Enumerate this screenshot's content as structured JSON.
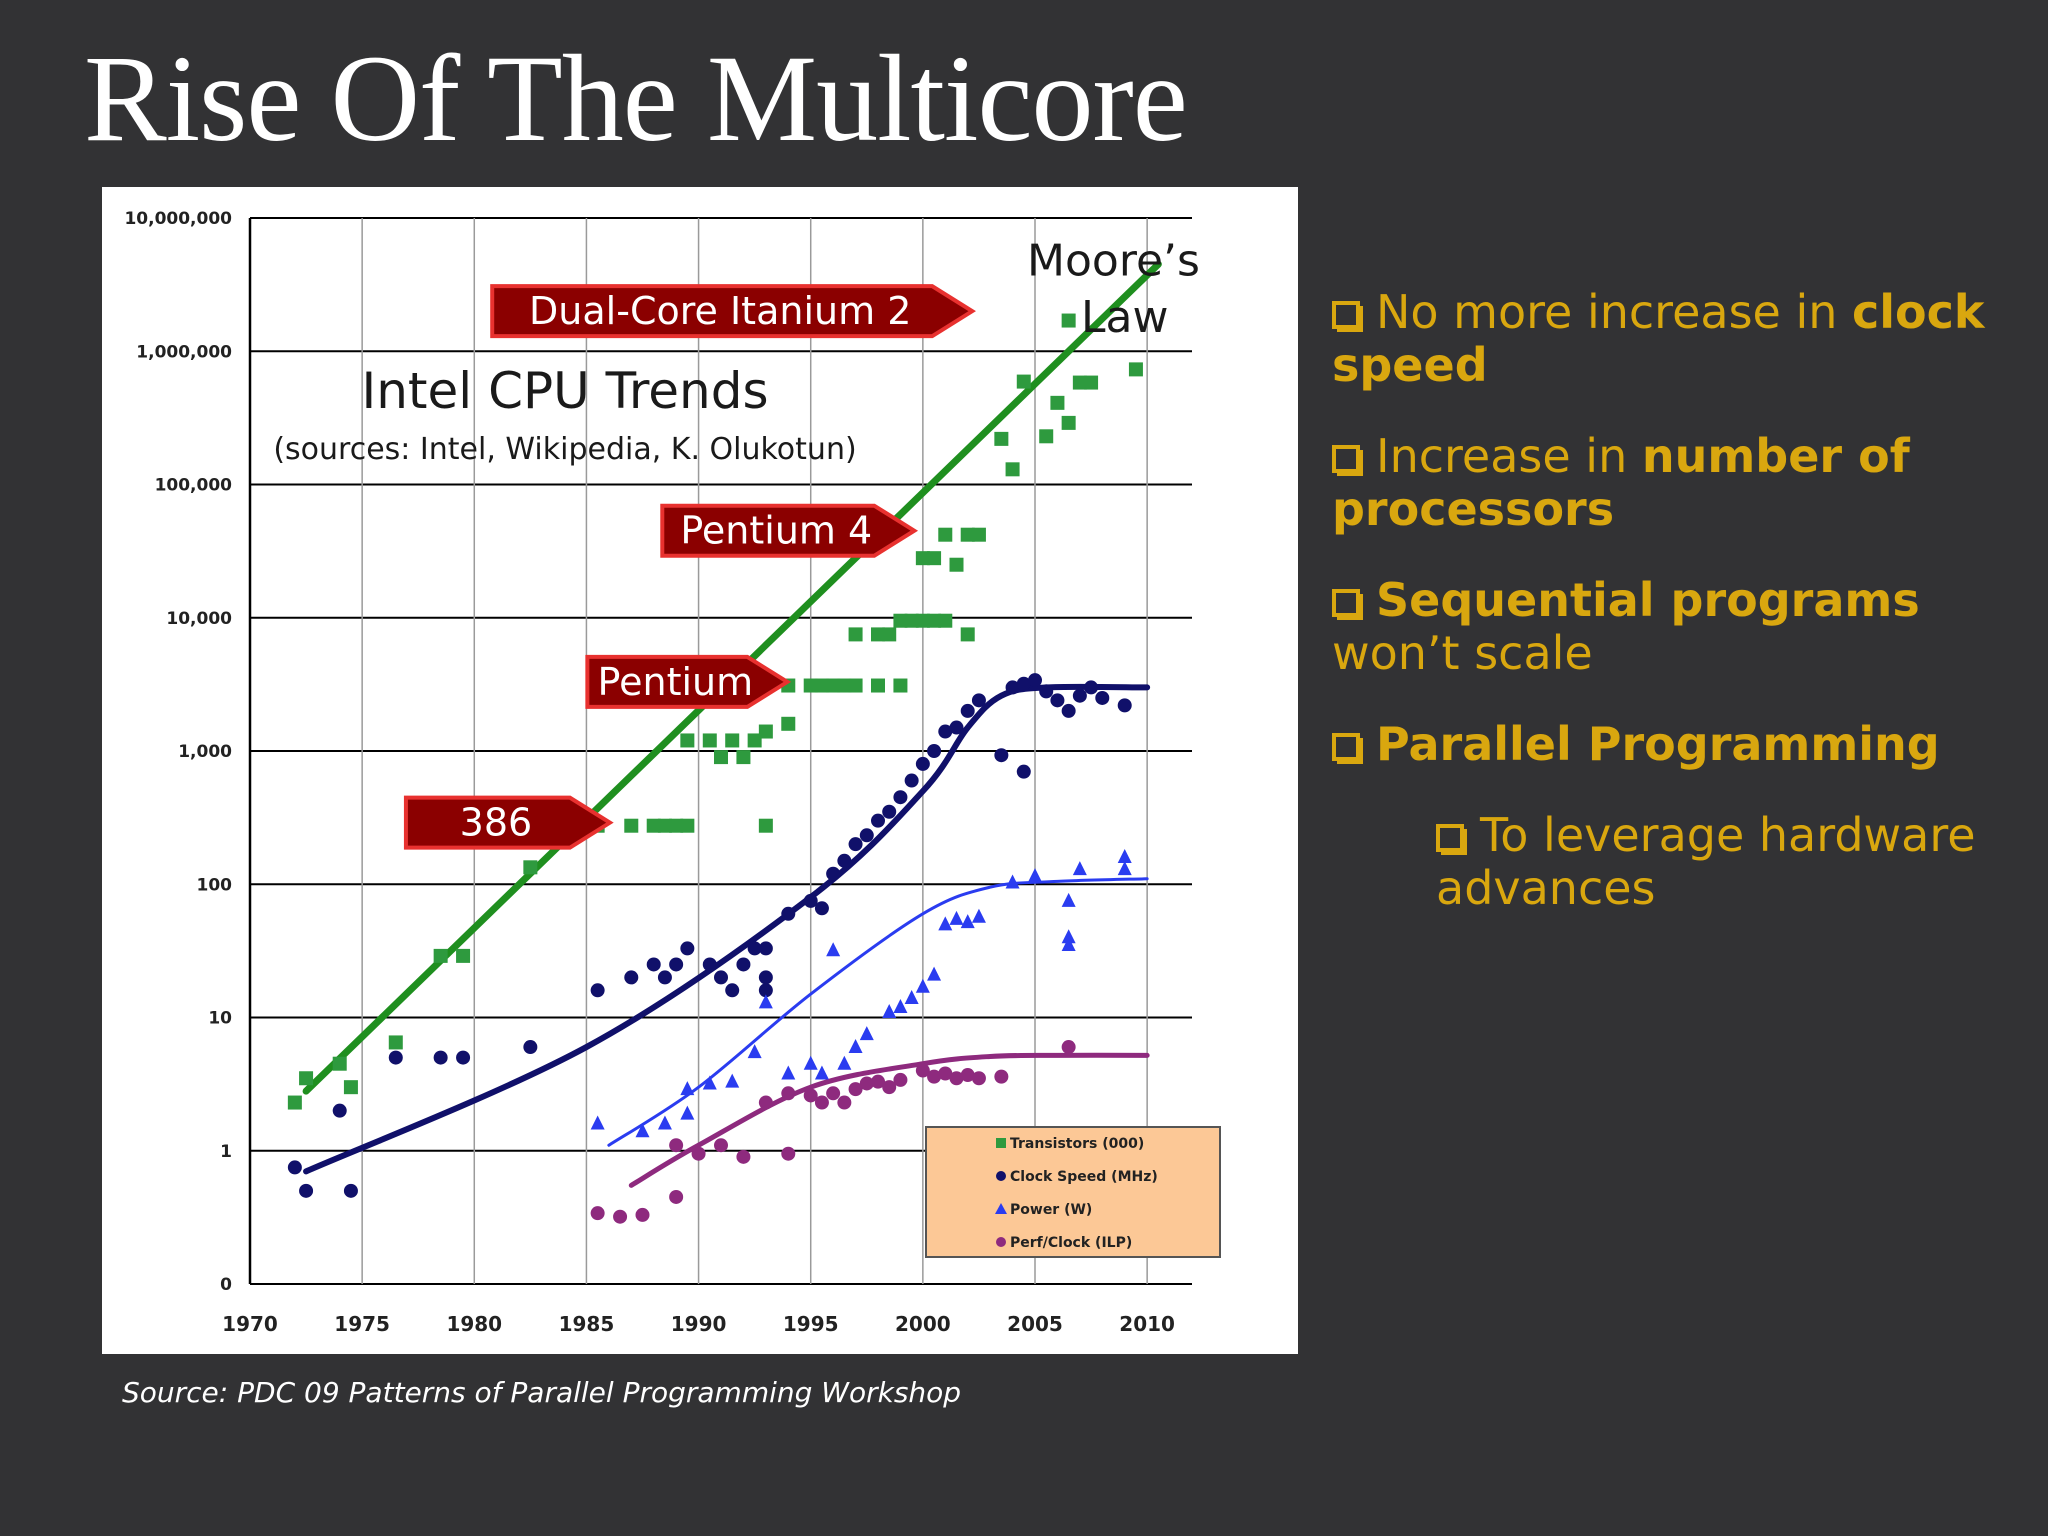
{
  "slide": {
    "title": "Rise Of The Multicore",
    "source": "Source: PDC 09 Patterns of Parallel Programming Workshop"
  },
  "colors": {
    "background": "#323234",
    "accent": "#d9a70f",
    "transistors": "#2e9a3e",
    "moore_line": "#1f8f1f",
    "clock": "#10106a",
    "power": "#2a3cf0",
    "perf": "#8e2a7e",
    "callout": "#8b0000",
    "legend_bg": "#fcc896"
  },
  "bullets": [
    {
      "parts": [
        {
          "text": "No more increase in ",
          "bold": false
        },
        {
          "text": "clock speed",
          "bold": true
        }
      ],
      "level": 1
    },
    {
      "parts": [
        {
          "text": "Increase in ",
          "bold": false
        },
        {
          "text": "number of processors",
          "bold": true
        }
      ],
      "level": 1
    },
    {
      "parts": [
        {
          "text": "Sequential programs",
          "bold": true
        },
        {
          "text": " won’t scale",
          "bold": false
        }
      ],
      "level": 1
    },
    {
      "parts": [
        {
          "text": "Parallel Programming",
          "bold": true
        }
      ],
      "level": 1
    },
    {
      "parts": [
        {
          "text": "To leverage hardware advances",
          "bold": false
        }
      ],
      "level": 2
    }
  ],
  "chart_data": {
    "type": "scatter",
    "title": "Intel CPU Trends",
    "subtitle": "(sources: Intel, Wikipedia, K. Olukotun)",
    "xlim": [
      1970,
      2012
    ],
    "y_scale": "log",
    "x_ticks": [
      1970,
      1975,
      1980,
      1985,
      1990,
      1995,
      2000,
      2005,
      2010
    ],
    "y_ticks": [
      {
        "value": 0.1,
        "label": "0"
      },
      {
        "value": 1,
        "label": "1"
      },
      {
        "value": 10,
        "label": "10"
      },
      {
        "value": 100,
        "label": "100"
      },
      {
        "value": 1000,
        "label": "1,000"
      },
      {
        "value": 10000,
        "label": "10,000"
      },
      {
        "value": 100000,
        "label": "100,000"
      },
      {
        "value": 1000000,
        "label": "1,000,000"
      },
      {
        "value": 10000000,
        "label": "10,000,000"
      }
    ],
    "grid": true,
    "legend_position": "bottom-right",
    "series": [
      {
        "name": "Transistors (000)",
        "marker": "square",
        "color_key": "transistors",
        "points": [
          [
            1972,
            2.3
          ],
          [
            1972.5,
            3.5
          ],
          [
            1974,
            4.5
          ],
          [
            1974.5,
            3
          ],
          [
            1976.5,
            6.5
          ],
          [
            1978.5,
            29
          ],
          [
            1979.5,
            29
          ],
          [
            1982.5,
            134
          ],
          [
            1985.5,
            275
          ],
          [
            1987,
            275
          ],
          [
            1988,
            275
          ],
          [
            1988.5,
            275
          ],
          [
            1989,
            275
          ],
          [
            1989.5,
            275
          ],
          [
            1993,
            275
          ],
          [
            1989.5,
            1200
          ],
          [
            1990.5,
            1200
          ],
          [
            1991,
            900
          ],
          [
            1991.5,
            1200
          ],
          [
            1992,
            900
          ],
          [
            1992.5,
            1200
          ],
          [
            1993,
            1400
          ],
          [
            1994,
            1600
          ],
          [
            1993,
            3100
          ],
          [
            1994,
            3100
          ],
          [
            1995,
            3100
          ],
          [
            1995.5,
            3100
          ],
          [
            1996,
            3100
          ],
          [
            1996.5,
            3100
          ],
          [
            1997,
            3100
          ],
          [
            1998,
            3100
          ],
          [
            1999,
            3100
          ],
          [
            1997,
            7500
          ],
          [
            1998,
            7500
          ],
          [
            1998.5,
            7500
          ],
          [
            1999,
            9500
          ],
          [
            1999.5,
            9500
          ],
          [
            2000,
            9500
          ],
          [
            2000.5,
            9500
          ],
          [
            2001,
            9500
          ],
          [
            2002,
            7500
          ],
          [
            2000,
            28000
          ],
          [
            2000.5,
            28000
          ],
          [
            2001,
            42000
          ],
          [
            2001.5,
            25000
          ],
          [
            2002,
            42000
          ],
          [
            2002.5,
            42000
          ],
          [
            2003.5,
            220000
          ],
          [
            2004,
            130000
          ],
          [
            2004.5,
            592000
          ],
          [
            2005.5,
            230000
          ],
          [
            2006,
            410000
          ],
          [
            2006.5,
            290000
          ],
          [
            2007,
            582000
          ],
          [
            2007.5,
            582000
          ],
          [
            2006.5,
            1700000
          ],
          [
            2009.5,
            731000
          ]
        ]
      },
      {
        "name": "Clock Speed (MHz)",
        "marker": "circle",
        "color_key": "clock",
        "points": [
          [
            1972,
            0.75
          ],
          [
            1972.5,
            0.5
          ],
          [
            1974,
            2
          ],
          [
            1974.5,
            0.5
          ],
          [
            1976.5,
            5
          ],
          [
            1978.5,
            5
          ],
          [
            1979.5,
            5
          ],
          [
            1982.5,
            6
          ],
          [
            1985.5,
            16
          ],
          [
            1987,
            20
          ],
          [
            1988,
            25
          ],
          [
            1988.5,
            20
          ],
          [
            1989,
            25
          ],
          [
            1989.5,
            33
          ],
          [
            1990.5,
            25
          ],
          [
            1991,
            20
          ],
          [
            1991.5,
            16
          ],
          [
            1992,
            25
          ],
          [
            1992.5,
            33
          ],
          [
            1993,
            33
          ],
          [
            1993,
            20
          ],
          [
            1993,
            16
          ],
          [
            1994,
            60
          ],
          [
            1995,
            75
          ],
          [
            1995.5,
            66
          ],
          [
            1996,
            120
          ],
          [
            1996.5,
            150
          ],
          [
            1997,
            200
          ],
          [
            1997.5,
            233
          ],
          [
            1998,
            300
          ],
          [
            1998.5,
            350
          ],
          [
            1999,
            450
          ],
          [
            1999.5,
            600
          ],
          [
            2000,
            800
          ],
          [
            2000.5,
            1000
          ],
          [
            2001,
            1400
          ],
          [
            2001.5,
            1500
          ],
          [
            2002,
            2000
          ],
          [
            2002.5,
            2400
          ],
          [
            2003.5,
            930
          ],
          [
            2004,
            3000
          ],
          [
            2004.5,
            3200
          ],
          [
            2005,
            3400
          ],
          [
            2005.5,
            2800
          ],
          [
            2006,
            2400
          ],
          [
            2006.5,
            2000
          ],
          [
            2007,
            2600
          ],
          [
            2007.5,
            3000
          ],
          [
            2008,
            2500
          ],
          [
            2009,
            2200
          ],
          [
            2004.5,
            700
          ]
        ]
      },
      {
        "name": "Power (W)",
        "marker": "triangle",
        "color_key": "power",
        "points": [
          [
            1985.5,
            1.6
          ],
          [
            1987.5,
            1.4
          ],
          [
            1988.5,
            1.6
          ],
          [
            1989.5,
            1.9
          ],
          [
            1989.5,
            2.9
          ],
          [
            1990.5,
            3.2
          ],
          [
            1991.5,
            3.3
          ],
          [
            1992.5,
            5.5
          ],
          [
            1993,
            13
          ],
          [
            1994,
            3.8
          ],
          [
            1995,
            4.5
          ],
          [
            1995.5,
            3.8
          ],
          [
            1996,
            32
          ],
          [
            1996.5,
            4.5
          ],
          [
            1997,
            6
          ],
          [
            1997.5,
            7.5
          ],
          [
            1998.5,
            11
          ],
          [
            1999,
            12
          ],
          [
            1999.5,
            14
          ],
          [
            2000,
            17
          ],
          [
            2000.5,
            21
          ],
          [
            2001,
            50
          ],
          [
            2001.5,
            55
          ],
          [
            2002,
            52
          ],
          [
            2002.5,
            57
          ],
          [
            2004,
            103
          ],
          [
            2005,
            115
          ],
          [
            2006.5,
            75
          ],
          [
            2006.5,
            40
          ],
          [
            2006.5,
            35
          ],
          [
            2007,
            130
          ],
          [
            2009,
            130
          ],
          [
            2009,
            160
          ]
        ]
      },
      {
        "name": "Perf/Clock (ILP)",
        "marker": "circle",
        "color_key": "perf",
        "points": [
          [
            1985.5,
            0.34
          ],
          [
            1986.5,
            0.32
          ],
          [
            1987.5,
            0.33
          ],
          [
            1989,
            0.45
          ],
          [
            1989,
            1.1
          ],
          [
            1990,
            0.95
          ],
          [
            1991,
            1.1
          ],
          [
            1992,
            0.9
          ],
          [
            1993,
            2.3
          ],
          [
            1994,
            0.95
          ],
          [
            1994,
            2.7
          ],
          [
            1995,
            2.6
          ],
          [
            1995.5,
            2.3
          ],
          [
            1996,
            2.7
          ],
          [
            1996.5,
            2.3
          ],
          [
            1997,
            2.9
          ],
          [
            1997.5,
            3.2
          ],
          [
            1998,
            3.3
          ],
          [
            1998.5,
            3
          ],
          [
            1999,
            3.4
          ],
          [
            2000,
            4
          ],
          [
            2000.5,
            3.6
          ],
          [
            2001,
            3.8
          ],
          [
            2001.5,
            3.5
          ],
          [
            2002,
            3.7
          ],
          [
            2002.5,
            3.5
          ],
          [
            2003.5,
            3.6
          ],
          [
            2006.5,
            6
          ]
        ]
      }
    ],
    "trend_lines": [
      {
        "series": "Transistors (000)",
        "color_key": "moore_line",
        "width": 7,
        "points": [
          [
            1972.5,
            2.8
          ],
          [
            2010.5,
            4500000
          ]
        ]
      },
      {
        "series": "Clock Speed (MHz)",
        "color_key": "clock",
        "width": 6,
        "points": [
          [
            1972.5,
            0.7
          ],
          [
            1985,
            6
          ],
          [
            1995,
            80
          ],
          [
            2000,
            500
          ],
          [
            2002,
            1500
          ],
          [
            2003.5,
            2600
          ],
          [
            2005.5,
            3000
          ],
          [
            2010,
            3000
          ]
        ]
      },
      {
        "series": "Power (W)",
        "color_key": "power",
        "width": 3,
        "points": [
          [
            1986,
            1.1
          ],
          [
            1990,
            3
          ],
          [
            1995,
            15
          ],
          [
            2000,
            60
          ],
          [
            2003,
            95
          ],
          [
            2006,
            105
          ],
          [
            2010,
            110
          ]
        ]
      },
      {
        "series": "Perf/Clock (ILP)",
        "color_key": "perf",
        "width": 5,
        "points": [
          [
            1987,
            0.55
          ],
          [
            1990,
            1.1
          ],
          [
            1995,
            3
          ],
          [
            2000,
            4.5
          ],
          [
            2003,
            5.1
          ],
          [
            2006,
            5.2
          ],
          [
            2010,
            5.2
          ]
        ]
      }
    ],
    "annotations": [
      {
        "text": "Dual-Core Itanium 2",
        "at": [
          1991.5,
          2000000
        ]
      },
      {
        "text": "Pentium 4",
        "at": [
          1994,
          45000
        ]
      },
      {
        "text": "Pentium",
        "at": [
          1989.5,
          3300
        ]
      },
      {
        "text": "386",
        "at": [
          1981.5,
          290
        ]
      },
      {
        "text": "Moore’s",
        "at": [
          2008.5,
          3700000
        ]
      },
      {
        "text": "Law",
        "at": [
          2009,
          1400000
        ]
      }
    ]
  }
}
